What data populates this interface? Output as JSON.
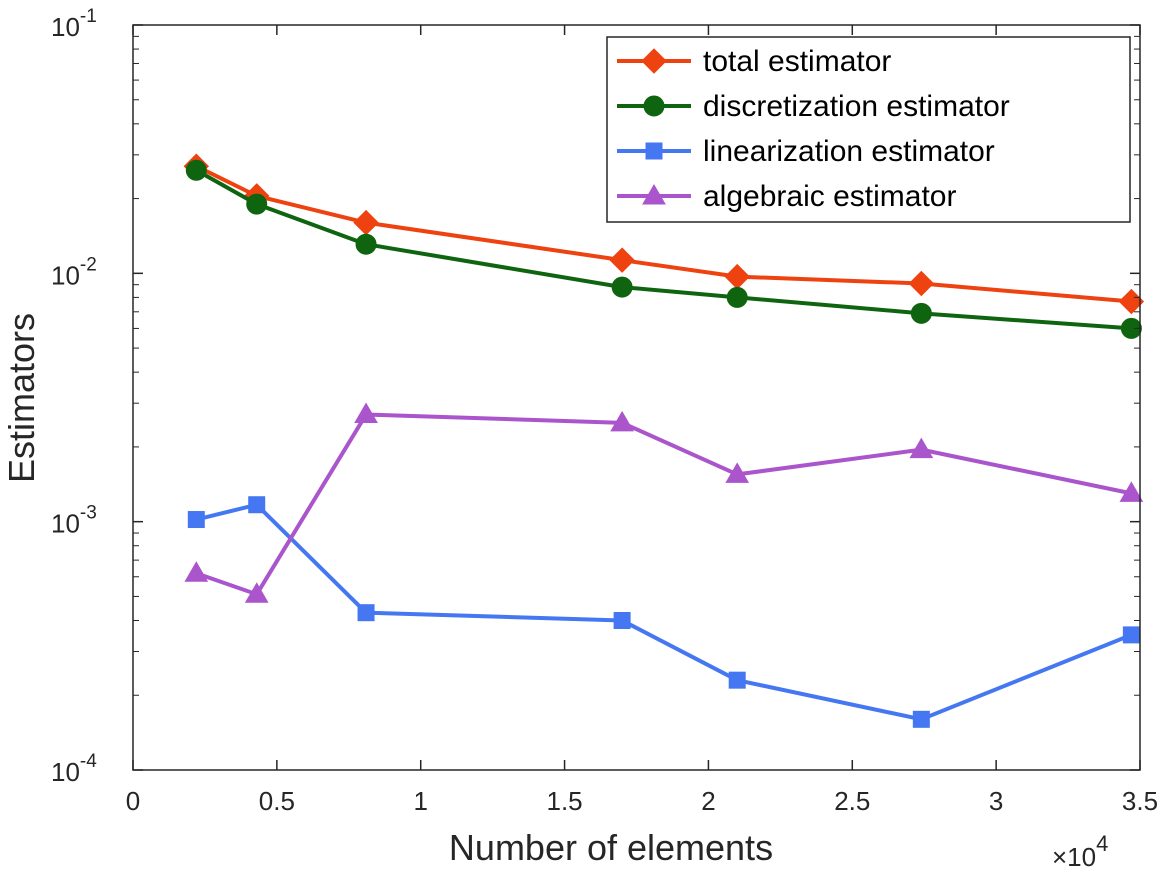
{
  "chart_data": {
    "type": "line",
    "xlabel": "Number of elements",
    "ylabel": "Estimators",
    "x_multiplier_label": "×10",
    "x_multiplier_exponent": "4",
    "x_scale": "linear",
    "y_scale": "log",
    "xlim": [
      0,
      35000
    ],
    "ylim": [
      0.0001,
      0.1
    ],
    "x_ticks": [
      {
        "value": 0,
        "label": "0"
      },
      {
        "value": 5000,
        "label": "0.5"
      },
      {
        "value": 10000,
        "label": "1"
      },
      {
        "value": 15000,
        "label": "1.5"
      },
      {
        "value": 20000,
        "label": "2"
      },
      {
        "value": 25000,
        "label": "2.5"
      },
      {
        "value": 30000,
        "label": "3"
      },
      {
        "value": 35000,
        "label": "3.5"
      }
    ],
    "y_ticks": [
      {
        "value": 0.0001,
        "base": "10",
        "exp": "-4"
      },
      {
        "value": 0.001,
        "base": "10",
        "exp": "-3"
      },
      {
        "value": 0.01,
        "base": "10",
        "exp": "-2"
      },
      {
        "value": 0.1,
        "base": "10",
        "exp": "-1"
      }
    ],
    "grid": false,
    "legend_position": "top-right",
    "x": [
      2200,
      4300,
      8100,
      17000,
      21000,
      27400,
      34700
    ],
    "series": [
      {
        "name": "total estimator",
        "color": "#EE4211",
        "marker": "diamond",
        "values": [
          0.027,
          0.0205,
          0.016,
          0.0113,
          0.0097,
          0.0091,
          0.0077
        ]
      },
      {
        "name": "discretization estimator",
        "color": "#0F6410",
        "marker": "circle",
        "values": [
          0.026,
          0.019,
          0.0131,
          0.0088,
          0.008,
          0.0069,
          0.006
        ]
      },
      {
        "name": "linearization estimator",
        "color": "#4577F2",
        "marker": "square",
        "values": [
          0.00102,
          0.00117,
          0.00043,
          0.0004,
          0.00023,
          0.00016,
          0.00035
        ]
      },
      {
        "name": "algebraic estimator",
        "color": "#AA55CC",
        "marker": "triangle",
        "values": [
          0.00062,
          0.00051,
          0.0027,
          0.0025,
          0.00155,
          0.00195,
          0.0013
        ]
      }
    ]
  }
}
